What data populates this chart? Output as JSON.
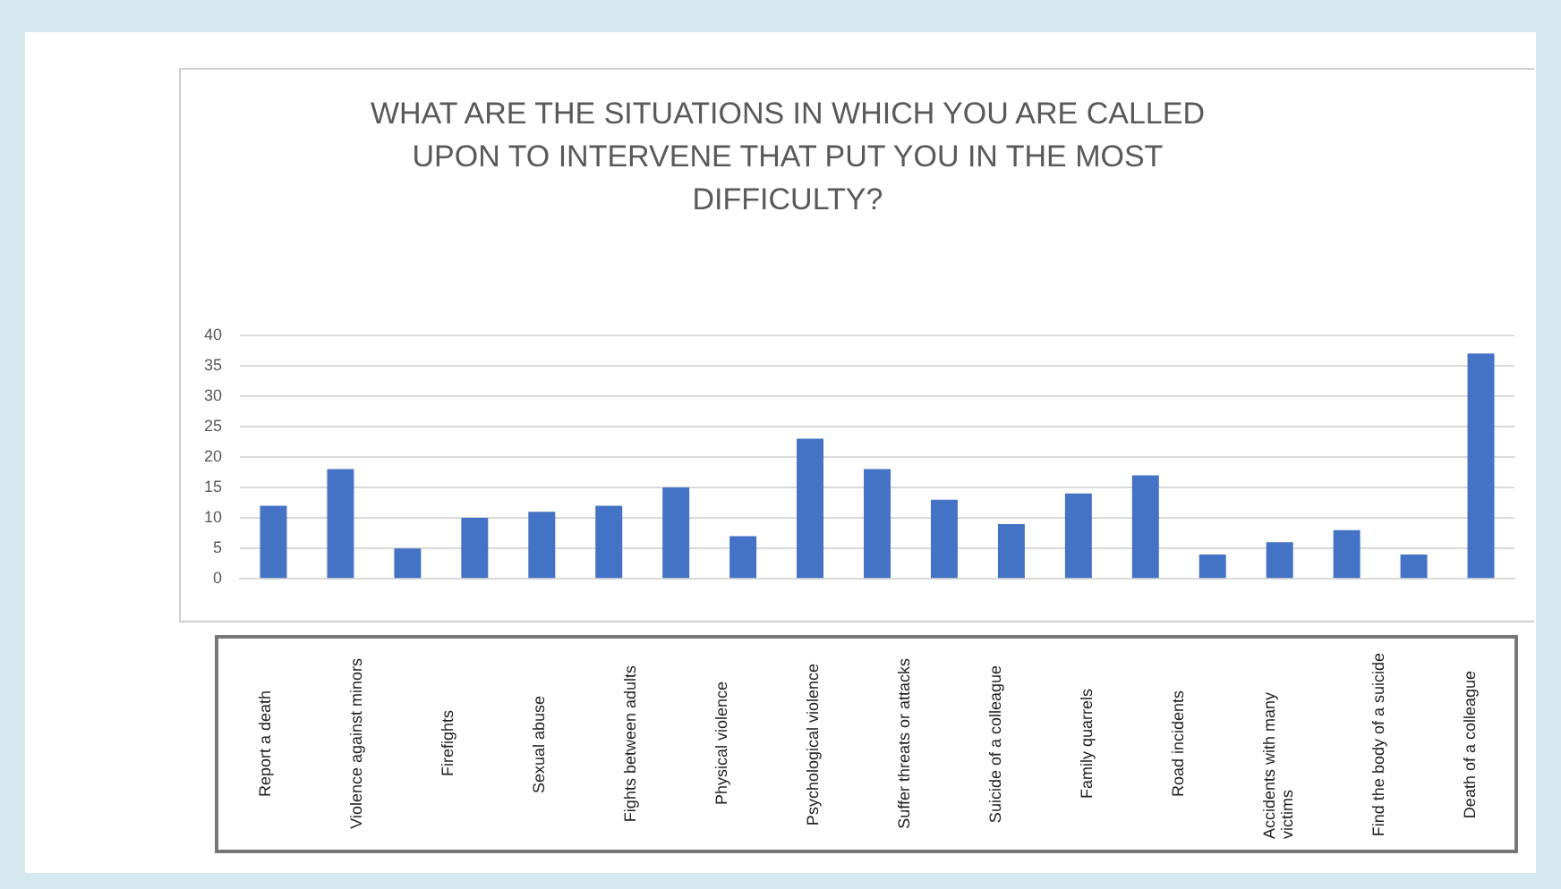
{
  "chart_data": {
    "type": "bar",
    "title": "WHAT ARE THE SITUATIONS IN WHICH YOU ARE CALLED UPON TO INTERVENE THAT PUT YOU IN THE MOST DIFFICULTY?",
    "categories": [
      null,
      null,
      null,
      null,
      null,
      null,
      null,
      null,
      null,
      null,
      null,
      null,
      null,
      null,
      null,
      null,
      null,
      null,
      null
    ],
    "values": [
      12,
      18,
      5,
      10,
      11,
      12,
      15,
      7,
      23,
      18,
      13,
      9,
      14,
      17,
      4,
      6,
      8,
      4,
      37
    ],
    "color": "#4472c4",
    "ylim": [
      0,
      40
    ],
    "yticks": [
      0,
      5,
      10,
      15,
      20,
      25,
      30,
      35,
      40
    ],
    "grid": "y",
    "legend": false,
    "annotations": [
      "Report a death",
      "Violence against minors",
      "Firefights",
      "Sexual abuse",
      "Fights between adults",
      "Physical violence",
      "Psychological violence",
      "Suffer threats or attacks",
      "Suicide of a colleague",
      "Family quarrels",
      "Road incidents",
      "Accidents with many victims",
      "Find the body of a suicide",
      "Death of a colleague"
    ]
  }
}
